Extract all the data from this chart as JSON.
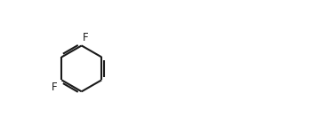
{
  "bg_color": "#ffffff",
  "line_color": "#000000",
  "atom_color": "#000000",
  "n_color": "#0000cd",
  "cl_color": "#000000",
  "o_color": "#000000",
  "line_width": 1.5,
  "font_size": 9,
  "figsize": [
    3.52,
    1.58
  ],
  "dpi": 100
}
